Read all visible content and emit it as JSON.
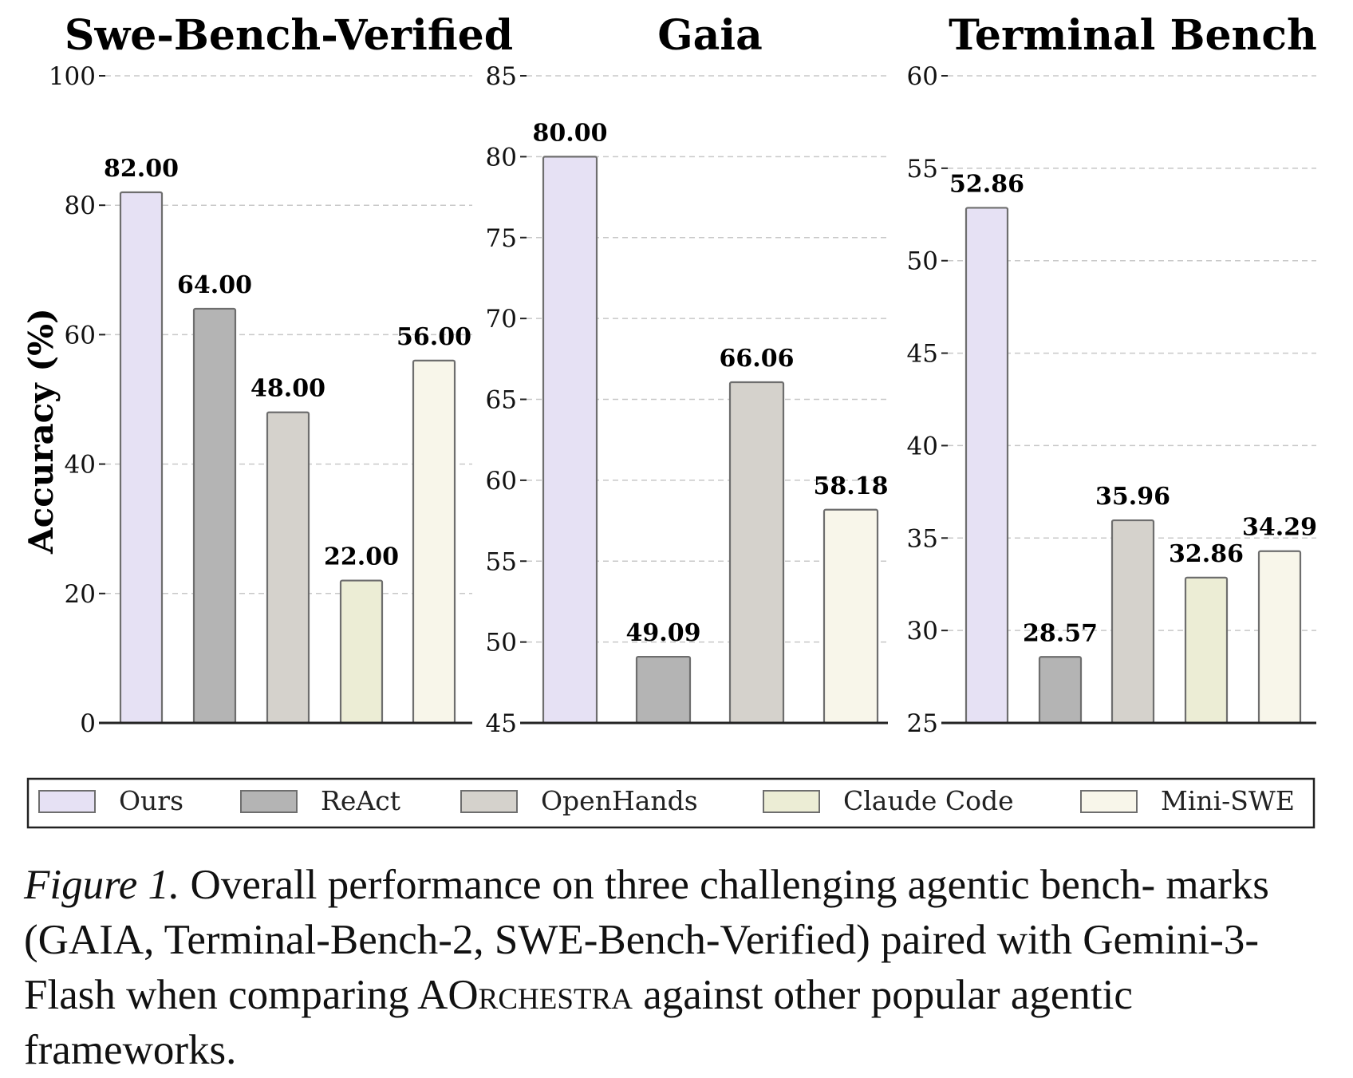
{
  "chart_data": [
    {
      "type": "bar",
      "title": "Swe-Bench-Verified",
      "ylabel": "Accuracy (%)",
      "ylim": [
        0,
        100
      ],
      "yticks": [
        "0",
        "20",
        "40",
        "60",
        "80",
        "100"
      ],
      "categories": [
        "Ours",
        "ReAct",
        "OpenHands",
        "Claude Code",
        "Mini-SWE"
      ],
      "values": [
        82.0,
        64.0,
        48.0,
        22.0,
        56.0
      ],
      "value_labels": [
        "82.00",
        "64.00",
        "48.00",
        "22.00",
        "56.00"
      ],
      "grid": true
    },
    {
      "type": "bar",
      "title": "Gaia",
      "ylim": [
        45,
        85
      ],
      "yticks": [
        "45",
        "50",
        "55",
        "60",
        "65",
        "70",
        "75",
        "80",
        "85"
      ],
      "categories": [
        "Ours",
        "ReAct",
        "OpenHands",
        "Mini-SWE"
      ],
      "values": [
        80.0,
        49.09,
        66.06,
        58.18
      ],
      "value_labels": [
        "80.00",
        "49.09",
        "66.06",
        "58.18"
      ],
      "grid": true
    },
    {
      "type": "bar",
      "title": "Terminal Bench",
      "ylim": [
        25,
        60
      ],
      "yticks": [
        "25",
        "30",
        "35",
        "40",
        "45",
        "50",
        "55",
        "60"
      ],
      "categories": [
        "Ours",
        "ReAct",
        "OpenHands",
        "Claude Code",
        "Mini-SWE"
      ],
      "values": [
        52.86,
        28.57,
        35.96,
        32.86,
        34.29
      ],
      "value_labels": [
        "52.86",
        "28.57",
        "35.96",
        "32.86",
        "34.29"
      ],
      "grid": true
    }
  ],
  "legend": {
    "placement": "bottom",
    "items": [
      {
        "label": "Ours",
        "color": "#e6e1f4"
      },
      {
        "label": "ReAct",
        "color": "#b4b4b4"
      },
      {
        "label": "OpenHands",
        "color": "#d5d2cc"
      },
      {
        "label": "Claude Code",
        "color": "#ecedd5"
      },
      {
        "label": "Mini-SWE",
        "color": "#f8f6ea"
      }
    ]
  },
  "caption": {
    "label": "Figure 1.",
    "text_before": "Overall performance on three challenging agentic bench- marks (GAIA, Terminal-Bench-2, SWE-Bench-Verified) paired with Gemini-3-Flash when comparing A",
    "smallcaps": "Orchestra",
    "text_after": " against other popular agentic frameworks."
  }
}
